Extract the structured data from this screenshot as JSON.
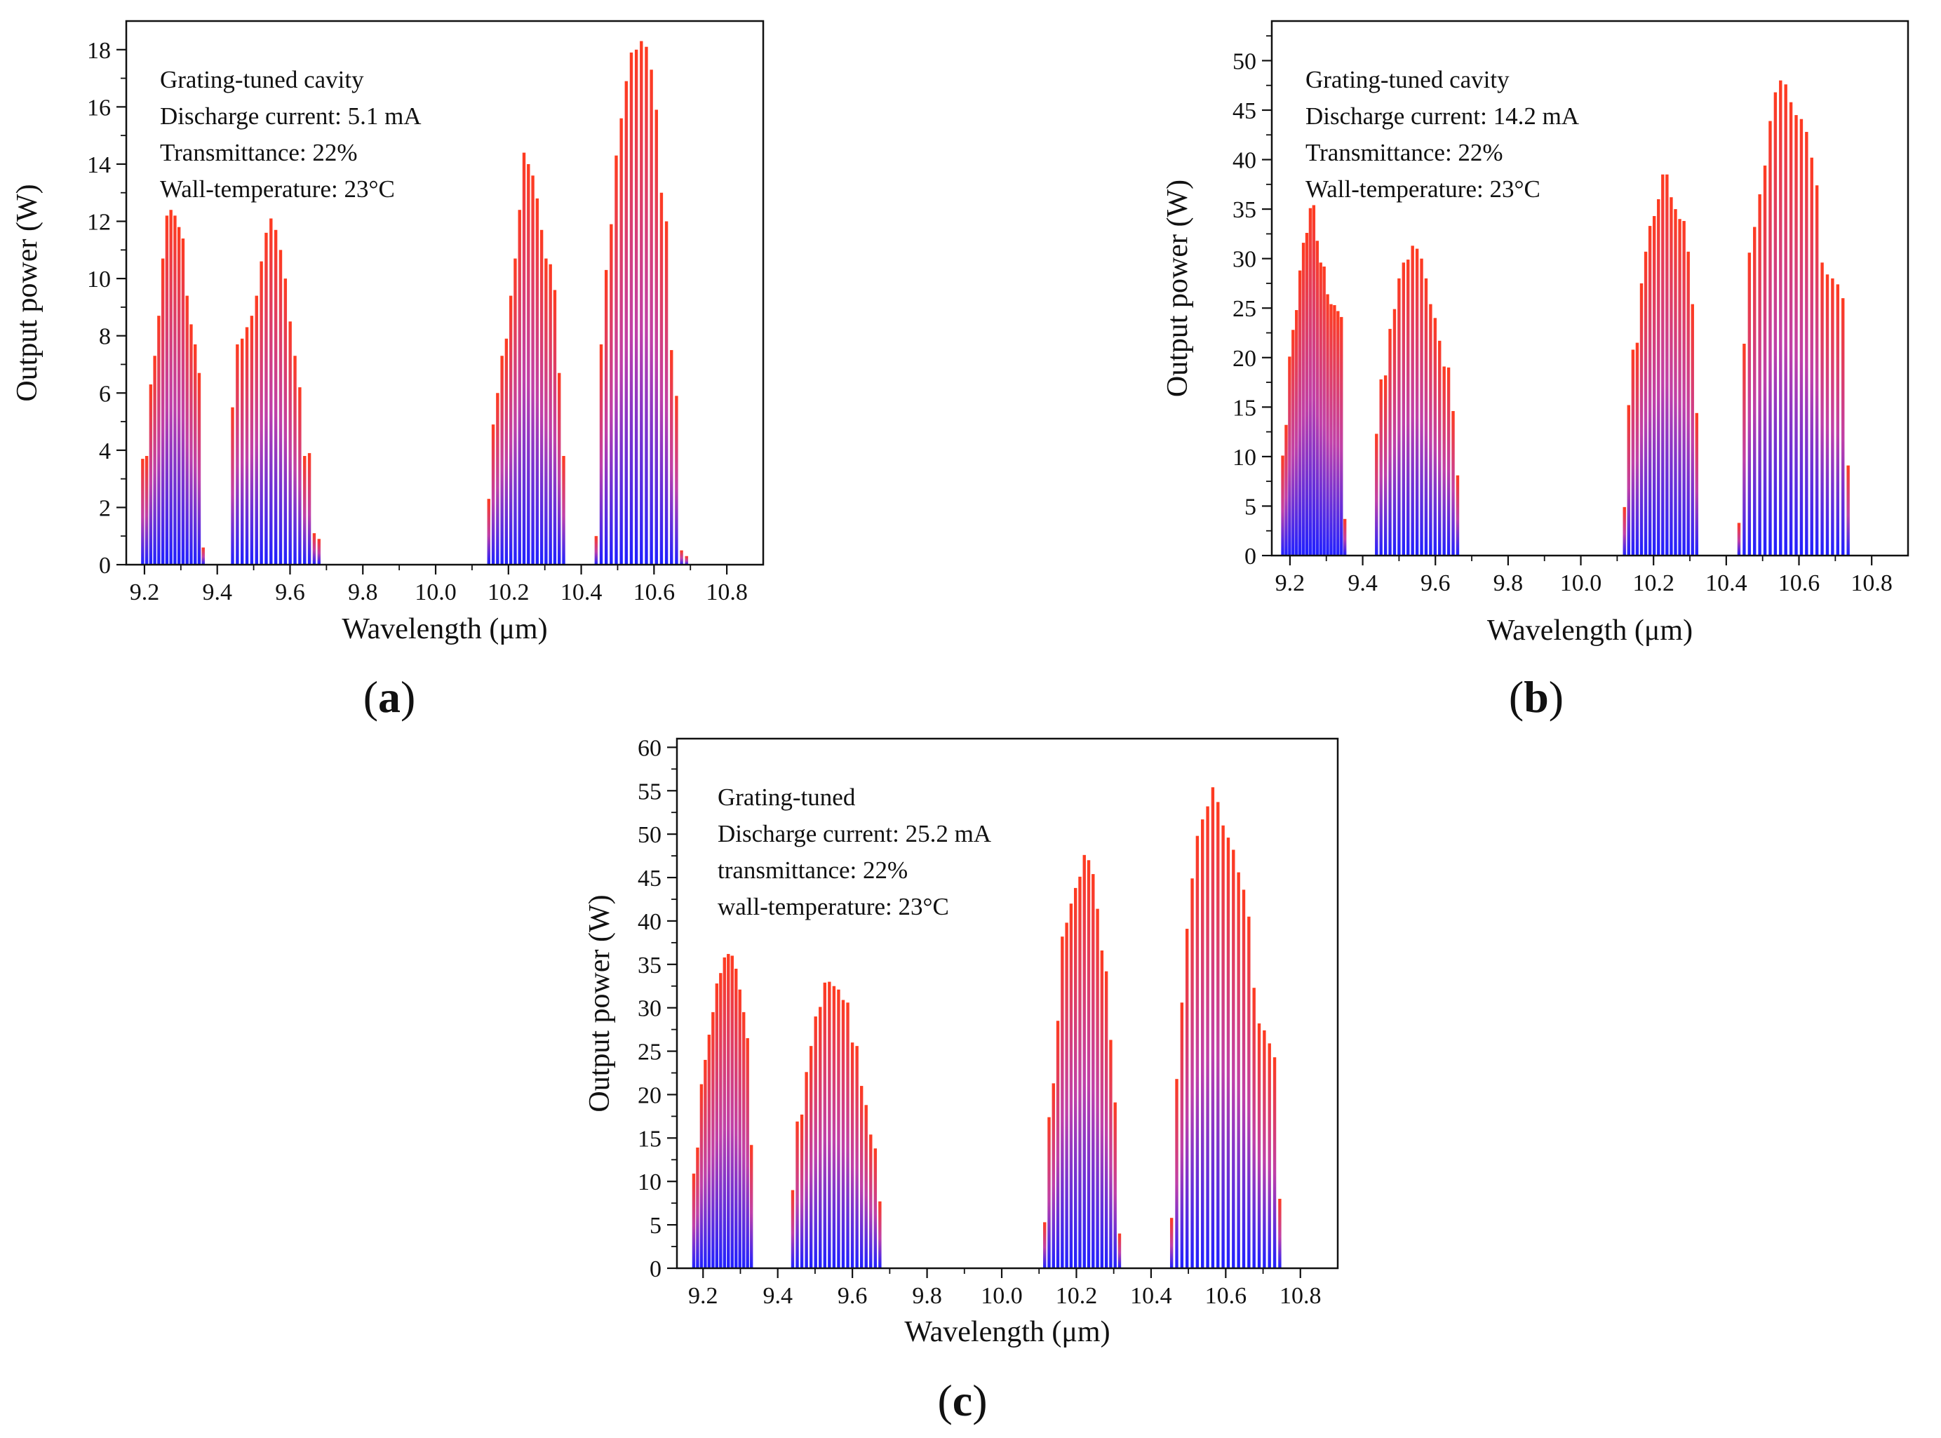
{
  "chart_data": [
    {
      "panel": "a",
      "type": "bar",
      "title": "",
      "xlabel": "Wavelength (μm)",
      "ylabel": "Output power (W)",
      "xlim": [
        9.15,
        10.9
      ],
      "ylim": [
        0,
        19
      ],
      "xticks": [
        "9.2",
        "9.4",
        "9.6",
        "9.8",
        "10.0",
        "10.2",
        "10.4",
        "10.6",
        "10.8"
      ],
      "yticks": [
        "0",
        "2",
        "4",
        "6",
        "8",
        "10",
        "12",
        "14",
        "16",
        "18"
      ],
      "annotations": [
        "Grating-tuned cavity",
        "Discharge current: 5.1 mA",
        "Transmittance: 22%",
        "Wall-temperature: 23°C"
      ],
      "panel_label": {
        "open": "(",
        "letter": "a",
        "close": ")"
      },
      "bands": [
        {
          "start": 9.195,
          "step": 0.0111,
          "values": [
            3.7,
            3.8,
            6.3,
            7.3,
            8.7,
            10.7,
            12.2,
            12.4,
            12.2,
            11.8,
            11.4,
            9.4,
            8.4,
            7.7,
            6.7,
            0.6
          ]
        },
        {
          "start": 9.442,
          "step": 0.0132,
          "values": [
            5.5,
            7.7,
            7.9,
            8.3,
            8.7,
            9.4,
            10.6,
            11.6,
            12.1,
            11.7,
            11.0,
            10.0,
            8.5,
            7.3,
            6.2,
            3.8,
            3.9,
            1.1,
            0.9
          ]
        },
        {
          "start": 10.146,
          "step": 0.0121,
          "values": [
            2.3,
            4.9,
            6.0,
            7.3,
            7.9,
            9.4,
            10.7,
            12.4,
            14.4,
            14.0,
            13.6,
            12.8,
            11.7,
            10.7,
            10.5,
            9.6,
            6.7,
            3.8
          ]
        },
        {
          "start": 10.441,
          "step": 0.0138,
          "values": [
            1.0,
            7.7,
            10.3,
            11.9,
            14.3,
            15.6,
            16.9,
            17.9,
            18.0,
            18.3,
            18.1,
            17.3,
            15.9,
            13.0,
            12.0,
            7.5,
            5.9,
            0.5,
            0.3
          ]
        }
      ]
    },
    {
      "panel": "b",
      "type": "bar",
      "title": "",
      "xlabel": "Wavelength (μm)",
      "ylabel": "Output power (W)",
      "xlim": [
        9.15,
        10.9
      ],
      "ylim": [
        0,
        54
      ],
      "xticks": [
        "9.2",
        "9.4",
        "9.6",
        "9.8",
        "10.0",
        "10.2",
        "10.4",
        "10.6",
        "10.8"
      ],
      "yticks": [
        "0",
        "5",
        "10",
        "15",
        "20",
        "25",
        "30",
        "35",
        "40",
        "45",
        "50"
      ],
      "annotations": [
        "Grating-tuned cavity",
        "Discharge current: 14.2 mA",
        "Transmittance: 22%",
        "Wall-temperature: 23°C"
      ],
      "panel_label": {
        "open": "(",
        "letter": "b",
        "close": ")"
      },
      "bands": [
        {
          "start": 9.18,
          "step": 0.0095,
          "values": [
            10.1,
            13.2,
            20.1,
            22.8,
            24.8,
            28.8,
            31.6,
            32.6,
            35.1,
            35.4,
            31.8,
            29.6,
            29.2,
            26.4,
            25.4,
            25.3,
            24.7,
            24.1,
            3.7
          ]
        },
        {
          "start": 9.438,
          "step": 0.0124,
          "values": [
            12.3,
            17.8,
            18.2,
            22.9,
            24.9,
            28.0,
            29.6,
            29.9,
            31.3,
            31.0,
            30.0,
            28.0,
            25.4,
            24.0,
            21.7,
            19.1,
            19.0,
            14.6,
            8.1
          ]
        },
        {
          "start": 10.12,
          "step": 0.0117,
          "values": [
            4.9,
            15.2,
            20.8,
            21.5,
            27.5,
            30.7,
            33.3,
            34.3,
            36.0,
            38.5,
            38.5,
            36.2,
            35.0,
            34.0,
            33.8,
            30.7,
            25.4,
            14.4
          ]
        },
        {
          "start": 10.435,
          "step": 0.0143,
          "values": [
            3.3,
            21.4,
            30.6,
            33.2,
            36.5,
            39.4,
            43.9,
            46.8,
            48.0,
            47.6,
            45.8,
            44.5,
            44.1,
            42.8,
            40.2,
            37.4,
            29.6,
            28.4,
            28.0,
            27.4,
            26.0,
            9.1
          ]
        }
      ]
    },
    {
      "panel": "c",
      "type": "bar",
      "title": "",
      "xlabel": "Wavelength (μm)",
      "ylabel": "Output power (W)",
      "xlim": [
        9.13,
        10.9
      ],
      "ylim": [
        0,
        61
      ],
      "xticks": [
        "9.2",
        "9.4",
        "9.6",
        "9.8",
        "10.0",
        "10.2",
        "10.4",
        "10.6",
        "10.8"
      ],
      "yticks": [
        "0",
        "5",
        "10",
        "15",
        "20",
        "25",
        "30",
        "35",
        "40",
        "45",
        "50",
        "55",
        "60"
      ],
      "annotations": [
        "Grating-tuned",
        "Discharge current: 25.2 mA",
        "transmittance: 22%",
        "wall-temperature: 23°C"
      ],
      "panel_label": {
        "open": "(",
        "letter": "c",
        "close": ")"
      },
      "bands": [
        {
          "start": 9.175,
          "step": 0.0103,
          "values": [
            10.9,
            13.9,
            21.2,
            24.0,
            26.9,
            29.5,
            32.8,
            34.0,
            35.8,
            36.2,
            36.0,
            34.5,
            32.1,
            29.5,
            26.5,
            14.2
          ]
        },
        {
          "start": 9.44,
          "step": 0.0123,
          "values": [
            9.0,
            16.9,
            17.7,
            22.6,
            25.6,
            29.0,
            30.1,
            32.9,
            33.0,
            32.5,
            32.1,
            30.9,
            30.6,
            26.0,
            25.6,
            21.0,
            18.8,
            15.4,
            13.8,
            7.7
          ]
        },
        {
          "start": 10.115,
          "step": 0.0118,
          "values": [
            5.3,
            17.4,
            21.3,
            28.5,
            38.2,
            39.8,
            42.0,
            43.8,
            45.1,
            47.6,
            47.0,
            45.4,
            41.4,
            36.6,
            34.2,
            26.3,
            19.1,
            4.0
          ]
        },
        {
          "start": 10.455,
          "step": 0.0138,
          "values": [
            5.8,
            21.8,
            30.6,
            39.1,
            44.9,
            49.8,
            51.7,
            53.2,
            55.4,
            53.7,
            51.0,
            49.6,
            48.2,
            45.6,
            43.6,
            40.5,
            32.3,
            28.2,
            27.4,
            25.9,
            24.3,
            8.0
          ]
        }
      ]
    }
  ],
  "colors": {
    "bar_top": "#ff3b1f",
    "bar_mid": "#c040a8",
    "bar_bottom": "#2020ff",
    "axis": "#111111",
    "background": "#ffffff"
  }
}
